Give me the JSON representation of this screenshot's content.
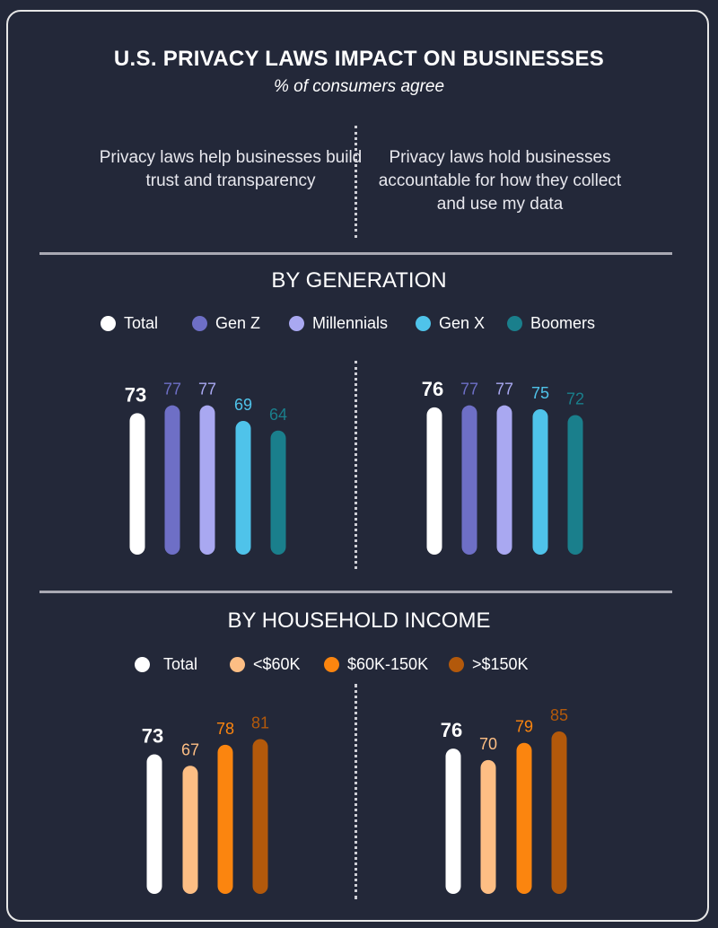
{
  "header": {
    "title": "U.S. PRIVACY LAWS IMPACT ON BUSINESSES",
    "subtitle": "% of consumers agree"
  },
  "questions": {
    "left": "Privacy laws help businesses build trust and transparency",
    "right": "Privacy laws hold businesses accountable for how they collect and use my data"
  },
  "chart_data": [
    {
      "type": "bar",
      "title": "BY GENERATION",
      "legend_placement": "top",
      "categories": [
        "Privacy laws help businesses build trust and transparency",
        "Privacy laws hold businesses accountable for how they collect and use my data"
      ],
      "series": [
        {
          "name": "Total",
          "color": "#ffffff",
          "values": [
            73,
            76
          ]
        },
        {
          "name": "Gen Z",
          "color": "#6e6fc6",
          "values": [
            77,
            77
          ]
        },
        {
          "name": "Millennials",
          "color": "#a9a8f1",
          "values": [
            77,
            77
          ]
        },
        {
          "name": "Gen X",
          "color": "#4fc3ea",
          "values": [
            69,
            75
          ]
        },
        {
          "name": "Boomers",
          "color": "#1a7f8c",
          "values": [
            64,
            72
          ]
        }
      ]
    },
    {
      "type": "bar",
      "title": "BY HOUSEHOLD INCOME",
      "legend_placement": "top",
      "categories": [
        "Privacy laws help businesses build trust and transparency",
        "Privacy laws hold businesses accountable for how they collect and use my data"
      ],
      "series": [
        {
          "name": "Total",
          "color": "#ffffff",
          "values": [
            73,
            76
          ]
        },
        {
          "name": "<$60K",
          "color": "#fdbe84",
          "values": [
            67,
            70
          ]
        },
        {
          "name": "$60K-150K",
          "color": "#fb850f",
          "values": [
            78,
            79
          ]
        },
        {
          "name": ">$150K",
          "color": "#b3590b",
          "values": [
            81,
            85
          ]
        }
      ]
    }
  ]
}
